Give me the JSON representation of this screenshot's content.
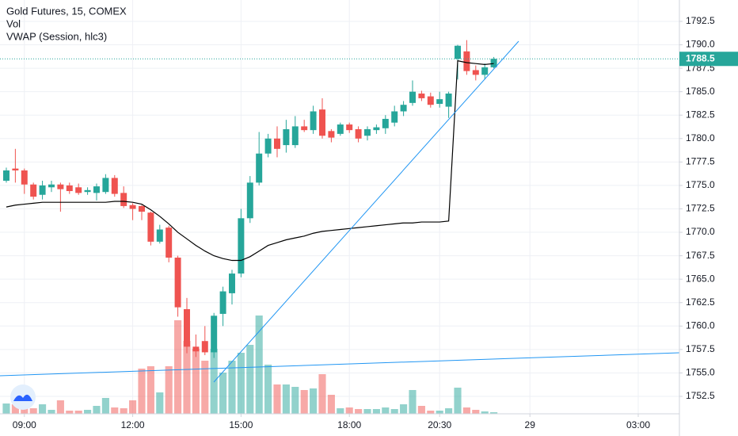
{
  "chart_data": {
    "type": "candlestick",
    "title": "Gold Futures, 15, COMEX",
    "x": [
      0,
      1,
      2,
      3,
      4,
      5,
      6,
      7,
      8,
      9,
      10,
      11,
      12,
      13,
      14,
      15,
      16,
      17,
      18,
      19,
      20,
      21,
      22,
      23,
      24,
      25,
      26,
      27,
      28,
      29,
      30,
      31,
      32,
      33,
      34,
      35,
      36,
      37,
      38,
      39,
      40,
      41,
      42,
      43,
      44,
      45,
      46,
      47,
      48,
      49,
      50,
      51,
      52,
      53,
      54
    ],
    "open": [
      1775.5,
      1776.8,
      1776.6,
      1775.1,
      1774.0,
      1774.8,
      1775.1,
      1775.0,
      1774.8,
      1774.3,
      1774.2,
      1774.3,
      1775.8,
      1774.2,
      1772.9,
      1772.8,
      1772.1,
      1769.0,
      1770.5,
      1767.3,
      1761.8,
      1757.8,
      1758.4,
      1757.2,
      1761.3,
      1763.5,
      1765.6,
      1771.5,
      1775.3,
      1778.4,
      1780.0,
      1779.3,
      1779.3,
      1781.3,
      1780.9,
      1783.1,
      1780.8,
      1780.5,
      1781.5,
      1781.0,
      1780.3,
      1780.9,
      1781.1,
      1781.7,
      1782.9,
      1783.8,
      1784.8,
      1784.5,
      1783.7,
      1783.4,
      1788.5,
      1789.3,
      1787.3,
      1786.8,
      1787.6
    ],
    "high": [
      1776.9,
      1778.9,
      1776.8,
      1775.3,
      1775.5,
      1775.5,
      1775.3,
      1775.3,
      1775.2,
      1774.8,
      1775.2,
      1776.2,
      1776.1,
      1774.9,
      1773.1,
      1772.9,
      1772.2,
      1770.8,
      1770.7,
      1767.5,
      1763.0,
      1759.1,
      1760.0,
      1761.4,
      1764.2,
      1766.0,
      1772.5,
      1776.0,
      1780.7,
      1780.5,
      1781.3,
      1782.0,
      1782.4,
      1782.0,
      1783.5,
      1784.3,
      1781.0,
      1781.7,
      1781.7,
      1781.3,
      1781.3,
      1781.5,
      1782.5,
      1783.5,
      1784.0,
      1786.2,
      1785.1,
      1784.9,
      1785.0,
      1785.0,
      1790.0,
      1790.5,
      1787.8,
      1788.0,
      1788.7
    ],
    "low": [
      1775.3,
      1775.3,
      1774.1,
      1773.5,
      1773.5,
      1774.3,
      1772.2,
      1774.1,
      1774.0,
      1774.0,
      1773.4,
      1774.1,
      1773.8,
      1772.6,
      1771.3,
      1771.3,
      1768.6,
      1768.8,
      1766.8,
      1761.0,
      1757.1,
      1756.7,
      1756.9,
      1756.6,
      1760.0,
      1762.3,
      1765.2,
      1771.0,
      1775.0,
      1778.0,
      1778.0,
      1778.5,
      1779.0,
      1780.7,
      1780.5,
      1780.0,
      1779.6,
      1780.3,
      1780.6,
      1779.6,
      1779.8,
      1780.5,
      1780.5,
      1781.3,
      1782.4,
      1783.5,
      1784.0,
      1783.3,
      1783.3,
      1782.2,
      1786.3,
      1786.8,
      1786.2,
      1786.3,
      1787.5
    ],
    "close": [
      1776.6,
      1776.6,
      1775.1,
      1773.8,
      1775.0,
      1775.1,
      1774.6,
      1774.4,
      1774.2,
      1774.5,
      1774.9,
      1775.8,
      1774.1,
      1772.8,
      1772.5,
      1772.2,
      1769.0,
      1770.3,
      1767.3,
      1762.0,
      1757.8,
      1757.3,
      1757.2,
      1761.1,
      1763.7,
      1765.6,
      1771.5,
      1775.3,
      1778.4,
      1780.0,
      1778.9,
      1781.0,
      1781.3,
      1780.9,
      1782.9,
      1780.3,
      1780.1,
      1781.5,
      1780.9,
      1780.0,
      1781.0,
      1781.2,
      1782.1,
      1782.9,
      1783.6,
      1785.0,
      1784.3,
      1783.6,
      1784.2,
      1784.8,
      1789.9,
      1787.2,
      1786.8,
      1787.6,
      1788.5
    ],
    "up_color": "#26a69a",
    "down_color": "#ef5350",
    "series": [
      {
        "name": "Vol",
        "type": "bar",
        "values": [
          13,
          12,
          10,
          7,
          12,
          5,
          17,
          4,
          4,
          5,
          10,
          20,
          8,
          7,
          17,
          57,
          60,
          27,
          60,
          118,
          92,
          82,
          67,
          82,
          52,
          67,
          77,
          87,
          124,
          62,
          37,
          37,
          34,
          30,
          32,
          50,
          24,
          7,
          8,
          6,
          6,
          6,
          8,
          6,
          12,
          30,
          10,
          4,
          4,
          7,
          33,
          8,
          5,
          3,
          2
        ]
      },
      {
        "name": "VWAP (Session, hlc3)",
        "type": "line",
        "color": "#000000",
        "values": [
          1772.7,
          1772.9,
          1773.0,
          1773.1,
          1773.2,
          1773.2,
          1773.2,
          1773.2,
          1773.2,
          1773.2,
          1773.2,
          1773.2,
          1773.3,
          1773.3,
          1773.2,
          1773.0,
          1772.4,
          1771.7,
          1770.9,
          1770.0,
          1769.3,
          1768.6,
          1768.0,
          1767.5,
          1767.2,
          1767.0,
          1767.0,
          1767.4,
          1768.0,
          1768.6,
          1768.9,
          1769.2,
          1769.4,
          1769.6,
          1769.9,
          1770.1,
          1770.2,
          1770.3,
          1770.4,
          1770.5,
          1770.6,
          1770.7,
          1770.8,
          1770.9,
          1771.0,
          1771.0,
          1771.1,
          1771.1,
          1771.1,
          1771.2,
          1788.3,
          1788.1,
          1788.0,
          1787.9,
          1788.0
        ]
      }
    ],
    "last_price": 1788.5,
    "xlim": [
      -0.7,
      74.56
    ],
    "xticks": [
      {
        "value": 2,
        "label": "09:00"
      },
      {
        "value": 14,
        "label": "12:00"
      },
      {
        "value": 26,
        "label": "15:00"
      },
      {
        "value": 38,
        "label": "18:00"
      },
      {
        "value": 48,
        "label": "20:30"
      },
      {
        "value": 58,
        "label": "29"
      },
      {
        "value": 70,
        "label": "03:00"
      }
    ],
    "ylim": [
      1750.64,
      1794.78
    ],
    "yticks": [
      1752.5,
      {
        "value": 1755,
        "label": "1755.0"
      },
      1757.5,
      {
        "value": 1760,
        "label": "1760.0"
      },
      1762.5,
      {
        "value": 1765,
        "label": "1765.0"
      },
      1767.5,
      {
        "value": 1770,
        "label": "1770.0"
      },
      1772.5,
      {
        "value": 1775,
        "label": "1775.0"
      },
      1777.5,
      {
        "value": 1780,
        "label": "1780.0"
      },
      1782.5,
      {
        "value": 1785,
        "label": "1785.0"
      },
      1787.5,
      {
        "value": 1790,
        "label": "1790.0"
      },
      1792.5
    ],
    "grid": true
  }
}
